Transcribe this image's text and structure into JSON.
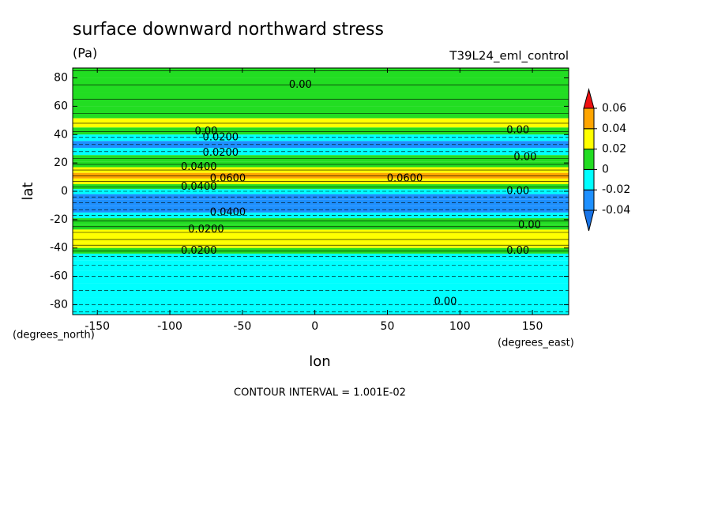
{
  "chart_data": {
    "type": "contour",
    "title": "surface downward northward stress",
    "subtitle": "(Pa)",
    "dataset": "T39L24_eml_control",
    "xlabel": "lon",
    "ylabel": "lat",
    "xunit": "(degrees_east)",
    "yunit": "(degrees_north)",
    "footer": "CONTOUR INTERVAL = 1.001E-02",
    "xlim": [
      -167,
      175
    ],
    "ylim": [
      -87,
      87
    ],
    "xticks": [
      -150,
      -100,
      -50,
      0,
      50,
      100,
      150
    ],
    "yticks": [
      -80,
      -60,
      -40,
      -20,
      0,
      20,
      40,
      60,
      80
    ],
    "lat": [
      85,
      75,
      65,
      55,
      48,
      42,
      38,
      33,
      28,
      23,
      19,
      15,
      11,
      7,
      3,
      0,
      -4,
      -8,
      -13,
      -17,
      -21,
      -25,
      -29,
      -34,
      -38,
      -42,
      -46,
      -52,
      -60,
      -70,
      -80,
      -85
    ],
    "values": [
      0.005,
      0.003,
      0.005,
      0.012,
      0.022,
      0.01,
      -0.01,
      -0.025,
      -0.015,
      0.0,
      0.015,
      0.025,
      0.045,
      0.035,
      0.015,
      -0.01,
      -0.025,
      -0.03,
      -0.025,
      -0.015,
      0.0,
      0.012,
      0.022,
      0.03,
      0.022,
      0.01,
      -0.005,
      -0.012,
      -0.012,
      -0.01,
      -0.008,
      -0.005
    ],
    "levels": [
      -0.04,
      -0.02,
      0,
      0.02,
      0.04,
      0.06
    ],
    "colors": [
      "#1874e8",
      "#1e90ff",
      "#00ffff",
      "#22dd22",
      "#ffff00",
      "#ffa500",
      "#ee1111"
    ],
    "contour_labels": [
      {
        "text": "0.00",
        "x": -10,
        "y": 75
      },
      {
        "text": "0.00",
        "x": -75,
        "y": 42
      },
      {
        "text": "0.0200",
        "x": -65,
        "y": 38
      },
      {
        "text": "0.0200",
        "x": -65,
        "y": 27
      },
      {
        "text": "0.0400",
        "x": -80,
        "y": 17
      },
      {
        "text": "0.0600",
        "x": -60,
        "y": 9
      },
      {
        "text": "0.0600",
        "x": 62,
        "y": 9
      },
      {
        "text": "0.0400",
        "x": -80,
        "y": 3
      },
      {
        "text": "0.0400",
        "x": -60,
        "y": -15
      },
      {
        "text": "0.0200",
        "x": -75,
        "y": -27
      },
      {
        "text": "0.0200",
        "x": -80,
        "y": -42
      },
      {
        "text": "0.00",
        "x": 140,
        "y": 43
      },
      {
        "text": "0.00",
        "x": 145,
        "y": 24
      },
      {
        "text": "0.00",
        "x": 140,
        "y": 0
      },
      {
        "text": "0.00",
        "x": 148,
        "y": -24
      },
      {
        "text": "0.00",
        "x": 140,
        "y": -42
      },
      {
        "text": "0.00",
        "x": 90,
        "y": -78
      }
    ]
  }
}
